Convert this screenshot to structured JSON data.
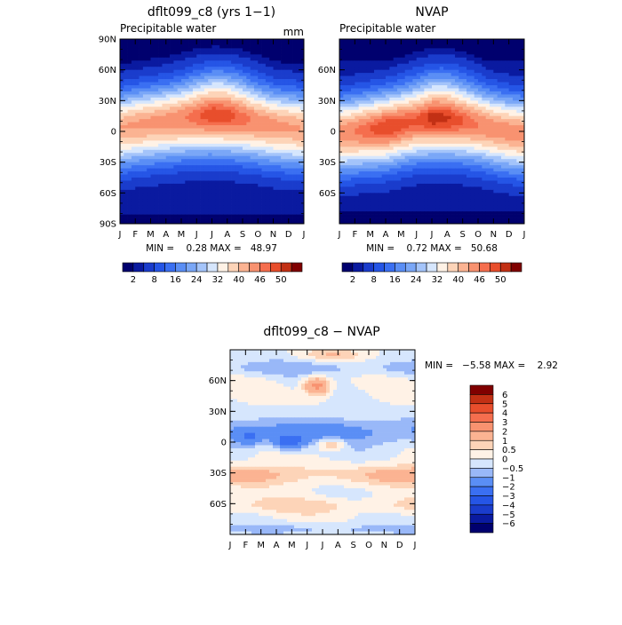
{
  "chart_data": [
    {
      "type": "heatmap",
      "title": "dflt099_c8 (yrs 1−1)",
      "subtitle": "Precipitable water",
      "units": "mm",
      "xlabel": "",
      "ylabel": "",
      "x_ticks": [
        "J",
        "F",
        "M",
        "A",
        "M",
        "J",
        "J",
        "A",
        "S",
        "O",
        "N",
        "D",
        "J"
      ],
      "y_ticks": [
        "90N",
        "60N",
        "30N",
        "0",
        "30S",
        "60S",
        "90S"
      ],
      "ylim": [
        -90,
        90
      ],
      "stats": "MIN =    0.28 MAX =   48.97",
      "colorbar_labels": [
        "2",
        "8",
        "16",
        "24",
        "32",
        "40",
        "46",
        "50"
      ],
      "colorbar_levels": [
        0,
        2,
        4,
        8,
        12,
        16,
        20,
        24,
        28,
        32,
        36,
        40,
        43,
        46,
        48,
        50,
        100
      ],
      "field": {
        "peak_lat": [
          3,
          6,
          8,
          10,
          12,
          14,
          15,
          14,
          12,
          9,
          6,
          4,
          3
        ],
        "peak_value": [
          43,
          43.5,
          44,
          44.5,
          45.5,
          47,
          48.97,
          48.5,
          47,
          45,
          44,
          43.5,
          43
        ],
        "polar_value": [
          0.28,
          1.5
        ],
        "north_ridge": 0.7
      }
    },
    {
      "type": "heatmap",
      "title": "NVAP",
      "subtitle": "Precipitable water",
      "xlabel": "",
      "ylabel": "",
      "x_ticks": [
        "J",
        "F",
        "M",
        "A",
        "M",
        "J",
        "J",
        "A",
        "S",
        "O",
        "N",
        "D",
        "J"
      ],
      "y_ticks": [
        "60N",
        "30N",
        "0",
        "30S",
        "60S"
      ],
      "ylim": [
        -90,
        90
      ],
      "stats": "MIN =    0.72 MAX =   50.68",
      "colorbar_labels": [
        "2",
        "8",
        "16",
        "24",
        "32",
        "40",
        "46",
        "50"
      ],
      "colorbar_levels": [
        0,
        2,
        4,
        8,
        12,
        16,
        20,
        24,
        28,
        32,
        36,
        40,
        43,
        46,
        48,
        50,
        100
      ],
      "field": {
        "peak_lat": [
          -2,
          0,
          2,
          4,
          7,
          10,
          12,
          12,
          10,
          7,
          3,
          0,
          -2
        ],
        "peak_value": [
          45,
          46,
          48,
          50,
          49,
          48,
          50.68,
          50,
          48,
          46,
          45,
          45,
          45
        ],
        "polar_value": [
          0.72,
          1.2
        ],
        "north_ridge": 0.65
      }
    },
    {
      "type": "heatmap",
      "title": "dflt099_c8 − NVAP",
      "xlabel": "",
      "ylabel": "",
      "x_ticks": [
        "J",
        "F",
        "M",
        "A",
        "M",
        "J",
        "J",
        "A",
        "S",
        "O",
        "N",
        "D",
        "J"
      ],
      "y_ticks": [
        "60N",
        "30N",
        "0",
        "30S",
        "60S"
      ],
      "ylim": [
        -90,
        90
      ],
      "stats": "MIN =   −5.58 MAX =    2.92",
      "colorbar_labels": [
        "6",
        "5",
        "4",
        "3",
        "2",
        "1",
        "0.5",
        "0",
        "−0.5",
        "−1",
        "−2",
        "−3",
        "−4",
        "−5",
        "−6"
      ],
      "colorbar_levels": [
        -100,
        -6,
        -5,
        -4,
        -3,
        -2,
        -1,
        -0.5,
        0,
        0.5,
        1,
        2,
        3,
        4,
        5,
        6,
        100
      ]
    }
  ],
  "colors": {
    "abs": [
      "#00006e",
      "#0a1aa0",
      "#1a3ccc",
      "#2555e6",
      "#3a6ff2",
      "#5a8ef5",
      "#7aa7f7",
      "#a4c4fa",
      "#d6e6fd",
      "#fff2e6",
      "#fdd4b8",
      "#fbb392",
      "#f89270",
      "#f56e4e",
      "#e84e2c",
      "#c23014",
      "#800000"
    ],
    "diff": [
      "#00006e",
      "#0a1aa0",
      "#1a3ccc",
      "#2555e6",
      "#3a6ff2",
      "#5a8ef5",
      "#99b8f8",
      "#d6e6fd",
      "#fff2e6",
      "#fdd4b8",
      "#fbb392",
      "#f89270",
      "#f56e4e",
      "#e84e2c",
      "#c23014",
      "#800000"
    ]
  }
}
